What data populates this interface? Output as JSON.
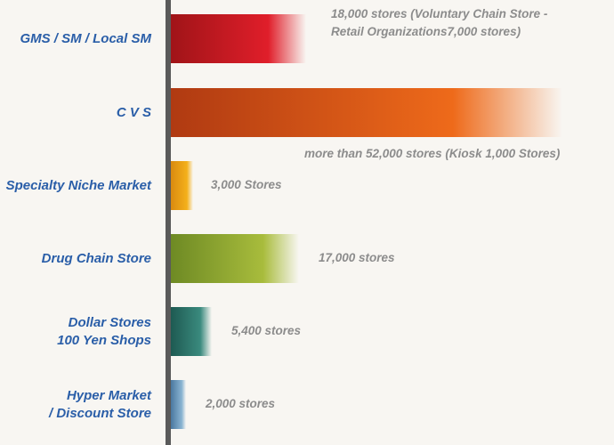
{
  "chart_data": {
    "type": "bar",
    "orientation": "horizontal",
    "categories": [
      "GMS / SM / Local SM",
      "C V S",
      "Specialty Niche Market",
      "Drug Chain Store",
      "Dollar Stores\n100 Yen Shops",
      "Hyper Market \n/ Discount Store"
    ],
    "values": [
      18000,
      52000,
      3000,
      17000,
      5400,
      2000
    ],
    "data_labels": [
      "18,000 stores (Voluntary Chain Store -\nRetail Organizations7,000 stores)",
      "more than 52,000 stores (Kiosk  1,000 Stores)",
      "3,000 Stores",
      "17,000 stores",
      "5,400 stores",
      "2,000 stores"
    ],
    "colors": [
      [
        "#a01418",
        "#e01e2a"
      ],
      [
        "#b03a12",
        "#ee6a1a"
      ],
      [
        "#d98a10",
        "#f4b01a"
      ],
      [
        "#6e8a24",
        "#a8bc3c"
      ],
      [
        "#1e5a52",
        "#3a8a7e"
      ],
      [
        "#4a78a0",
        "#8ab4d2"
      ]
    ],
    "grid": false,
    "legend": "none"
  }
}
